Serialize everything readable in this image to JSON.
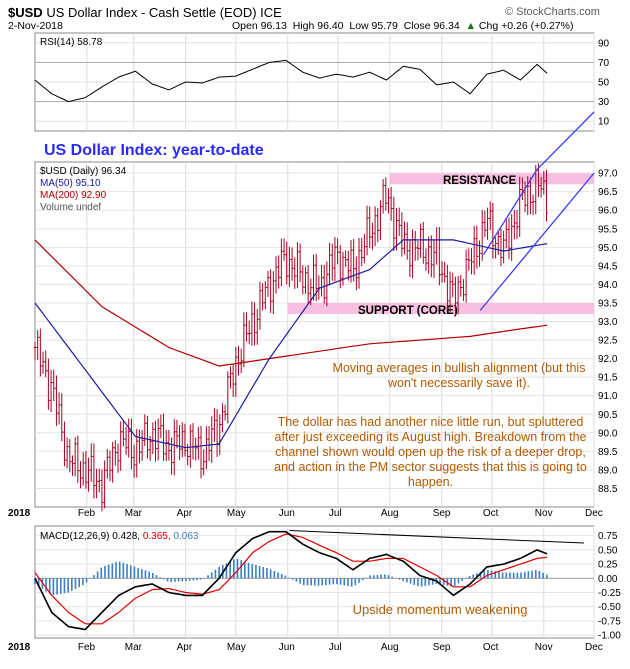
{
  "header": {
    "symbol": "$USD",
    "name": "US Dollar Index - Cash Settle (EOD)",
    "exchange": "ICE",
    "date": "2-Nov-2018",
    "open": "Open 96.13",
    "high": "High 96.40",
    "low": "Low 95.79",
    "close": "Close 96.34",
    "change": "Chg +0.26 (+0.27%)",
    "change_arrow": "▲",
    "source": "© StockCharts.com"
  },
  "colors": {
    "price_bar": "#aa0022",
    "ma50": "#1a1aa0",
    "ma200": "#b00000",
    "highlight": "#f7c0e0",
    "annotation": "#b35a00",
    "headline": "#2a2aff",
    "channel": "#3a3aff",
    "macd_line": "#000000",
    "signal_line": "#e00000",
    "histogram": "#3a7fc4"
  },
  "chart_data": [
    {
      "type": "line",
      "panel": "RSI(14)",
      "legend": "RSI(14) 58.78",
      "x_months": [
        "2018",
        "Feb",
        "Mar",
        "Apr",
        "May",
        "Jun",
        "Jul",
        "Aug",
        "Sep",
        "Oct",
        "Nov",
        "Dec"
      ],
      "yticks": [
        10,
        30,
        50,
        70,
        90
      ],
      "ylim": [
        0,
        100
      ],
      "x_day": [
        0,
        10,
        20,
        30,
        40,
        50,
        60,
        70,
        80,
        90,
        100,
        110,
        120,
        130,
        140,
        150,
        160,
        170,
        180,
        190,
        200,
        210,
        220,
        230,
        240,
        250,
        260,
        270,
        280,
        290,
        300,
        306
      ],
      "values": [
        52,
        38,
        30,
        34,
        45,
        55,
        61,
        48,
        42,
        50,
        49,
        55,
        56,
        63,
        70,
        72,
        60,
        54,
        58,
        55,
        60,
        52,
        66,
        63,
        47,
        50,
        38,
        58,
        62,
        52,
        68,
        58.78
      ],
      "reference_lines": [
        30,
        70
      ]
    },
    {
      "type": "candlestick",
      "panel": "price",
      "headline": "US Dollar Index: year-to-date",
      "legend": [
        "$USD (Daily) 96.34",
        "MA(50) 95.10",
        "MA(200) 92.90",
        "Volume undef"
      ],
      "yticks": [
        88.5,
        89.0,
        89.5,
        90.0,
        90.5,
        91.0,
        91.5,
        92.0,
        92.5,
        93.0,
        93.5,
        94.0,
        94.5,
        95.0,
        95.5,
        96.0,
        96.5,
        97.0
      ],
      "ylim": [
        88.0,
        97.3
      ],
      "x_day": [
        0,
        10,
        20,
        30,
        40,
        50,
        60,
        70,
        80,
        90,
        100,
        110,
        120,
        130,
        140,
        150,
        160,
        170,
        180,
        190,
        200,
        210,
        220,
        230,
        240,
        250,
        260,
        270,
        280,
        290,
        300,
        306
      ],
      "close": [
        92.3,
        91.2,
        89.3,
        89.0,
        88.6,
        89.8,
        89.5,
        90.0,
        89.6,
        89.8,
        89.4,
        90.2,
        91.9,
        93.0,
        94.0,
        94.7,
        94.2,
        93.9,
        94.8,
        94.4,
        95.4,
        96.4,
        95.0,
        95.0,
        94.7,
        93.6,
        94.6,
        95.7,
        94.9,
        96.2,
        96.7,
        96.34
      ],
      "ma50_day": [
        0,
        60,
        90,
        110,
        140,
        170,
        200,
        220,
        250,
        280,
        306
      ],
      "ma50": [
        93.5,
        89.9,
        89.6,
        89.7,
        92.0,
        93.9,
        94.4,
        95.2,
        95.2,
        94.9,
        95.1
      ],
      "ma200_day": [
        0,
        40,
        80,
        110,
        140,
        170,
        200,
        230,
        260,
        290,
        306
      ],
      "ma200": [
        95.2,
        93.4,
        92.3,
        91.8,
        92.0,
        92.2,
        92.4,
        92.5,
        92.6,
        92.8,
        92.9
      ],
      "annotations": {
        "resistance": "RESISTANCE",
        "support": "SUPPORT (CORE)",
        "note_ma": "Moving averages in bullish alignment (but this won't necessarily save it).",
        "note_main": "The dollar has had another nice little run, but spluttered after just exceeding its August high. Breakdown from the channel shown would open up the risk of a deeper drop, and action in the PM sector suggests that this is going to happen."
      },
      "x_months": [
        "2018",
        "Feb",
        "Mar",
        "Apr",
        "May",
        "Jun",
        "Jul",
        "Aug",
        "Sep",
        "Oct",
        "Nov",
        "Dec"
      ]
    },
    {
      "type": "line",
      "panel": "MACD",
      "legend": [
        "MACD(12,26,9)",
        "0.428",
        "0.365",
        "0.063"
      ],
      "yticks": [
        -1.0,
        -0.75,
        -0.5,
        -0.25,
        0.0,
        0.25,
        0.5,
        0.75
      ],
      "ylim": [
        -1.05,
        0.92
      ],
      "x_day": [
        0,
        10,
        20,
        30,
        40,
        50,
        60,
        70,
        80,
        90,
        100,
        110,
        120,
        130,
        140,
        150,
        160,
        170,
        180,
        190,
        200,
        210,
        220,
        230,
        240,
        250,
        260,
        270,
        280,
        290,
        300,
        306
      ],
      "macd": [
        0.0,
        -0.6,
        -0.85,
        -0.9,
        -0.6,
        -0.3,
        -0.15,
        -0.1,
        -0.25,
        -0.3,
        -0.3,
        0.0,
        0.45,
        0.7,
        0.82,
        0.82,
        0.6,
        0.45,
        0.35,
        0.15,
        0.35,
        0.42,
        0.3,
        0.05,
        -0.05,
        -0.3,
        -0.1,
        0.2,
        0.25,
        0.35,
        0.5,
        0.43
      ],
      "signal": [
        0.1,
        -0.3,
        -0.6,
        -0.8,
        -0.8,
        -0.6,
        -0.35,
        -0.2,
        -0.18,
        -0.25,
        -0.28,
        -0.2,
        0.1,
        0.45,
        0.65,
        0.78,
        0.72,
        0.58,
        0.45,
        0.3,
        0.3,
        0.35,
        0.35,
        0.2,
        0.05,
        -0.15,
        -0.15,
        0.05,
        0.15,
        0.25,
        0.35,
        0.37
      ],
      "note": "Upside momentum weakening",
      "x_months": [
        "2018",
        "Feb",
        "Mar",
        "Apr",
        "May",
        "Jun",
        "Jul",
        "Aug",
        "Sep",
        "Oct",
        "Nov",
        "Dec"
      ]
    }
  ]
}
